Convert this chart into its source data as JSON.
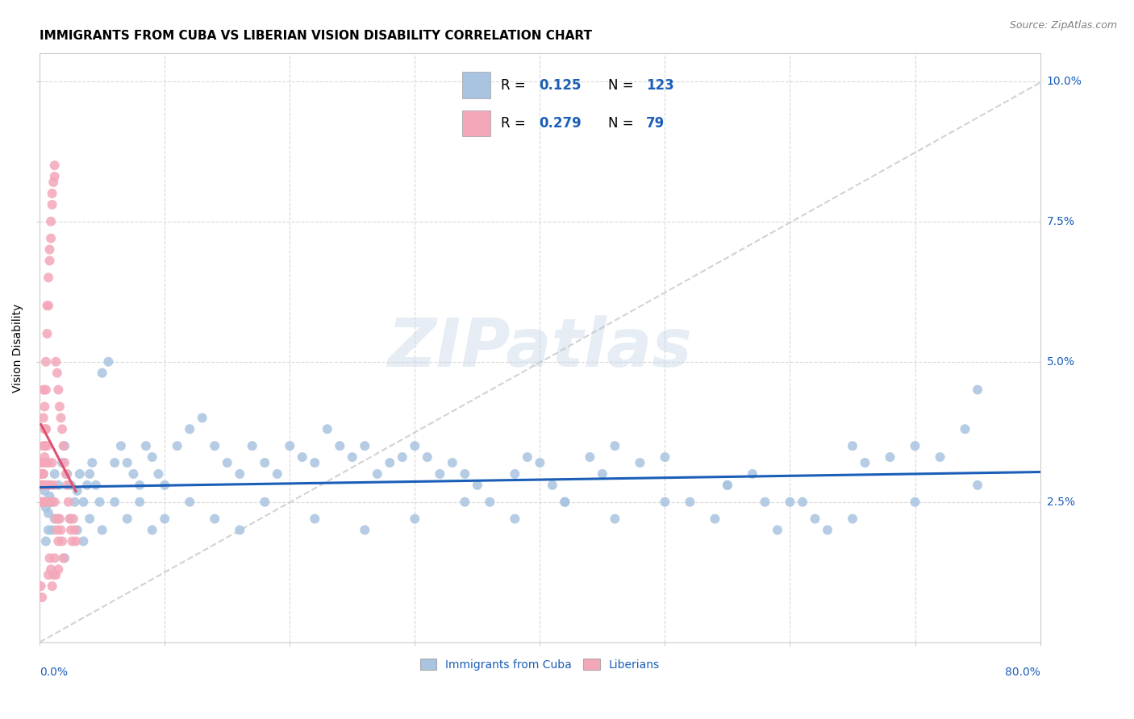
{
  "title": "IMMIGRANTS FROM CUBA VS LIBERIAN VISION DISABILITY CORRELATION CHART",
  "source": "Source: ZipAtlas.com",
  "ylabel": "Vision Disability",
  "xmin": 0.0,
  "xmax": 0.8,
  "ymin": 0.0,
  "ymax": 0.105,
  "watermark": "ZIPatlas",
  "color_cuba": "#a8c4e0",
  "color_liberian": "#f4a7b9",
  "color_cuba_line": "#1a5eb8",
  "color_liberian_line": "#e05070",
  "color_diagonal": "#c0c0c0",
  "title_fontsize": 11,
  "axis_label_fontsize": 10,
  "cuba_x": [
    0.002,
    0.003,
    0.004,
    0.003,
    0.005,
    0.008,
    0.007,
    0.01,
    0.012,
    0.015,
    0.018,
    0.02,
    0.022,
    0.025,
    0.028,
    0.03,
    0.032,
    0.035,
    0.038,
    0.04,
    0.042,
    0.045,
    0.048,
    0.05,
    0.055,
    0.06,
    0.065,
    0.07,
    0.075,
    0.08,
    0.085,
    0.09,
    0.095,
    0.1,
    0.11,
    0.12,
    0.13,
    0.14,
    0.15,
    0.16,
    0.17,
    0.18,
    0.19,
    0.2,
    0.21,
    0.22,
    0.23,
    0.24,
    0.25,
    0.26,
    0.27,
    0.28,
    0.29,
    0.3,
    0.31,
    0.32,
    0.33,
    0.34,
    0.35,
    0.36,
    0.38,
    0.39,
    0.4,
    0.41,
    0.42,
    0.44,
    0.45,
    0.46,
    0.48,
    0.5,
    0.52,
    0.54,
    0.55,
    0.57,
    0.58,
    0.59,
    0.61,
    0.62,
    0.63,
    0.65,
    0.66,
    0.68,
    0.7,
    0.72,
    0.74,
    0.75,
    0.01,
    0.015,
    0.008,
    0.012,
    0.005,
    0.007,
    0.02,
    0.025,
    0.03,
    0.035,
    0.04,
    0.05,
    0.06,
    0.07,
    0.08,
    0.09,
    0.1,
    0.12,
    0.14,
    0.16,
    0.18,
    0.22,
    0.26,
    0.3,
    0.34,
    0.38,
    0.42,
    0.46,
    0.5,
    0.55,
    0.6,
    0.65,
    0.7,
    0.75,
    0.003,
    0.006,
    0.009
  ],
  "cuba_y": [
    0.028,
    0.025,
    0.027,
    0.03,
    0.024,
    0.026,
    0.023,
    0.025,
    0.03,
    0.028,
    0.032,
    0.035,
    0.03,
    0.028,
    0.025,
    0.027,
    0.03,
    0.025,
    0.028,
    0.03,
    0.032,
    0.028,
    0.025,
    0.048,
    0.05,
    0.032,
    0.035,
    0.032,
    0.03,
    0.028,
    0.035,
    0.033,
    0.03,
    0.028,
    0.035,
    0.038,
    0.04,
    0.035,
    0.032,
    0.03,
    0.035,
    0.032,
    0.03,
    0.035,
    0.033,
    0.032,
    0.038,
    0.035,
    0.033,
    0.035,
    0.03,
    0.032,
    0.033,
    0.035,
    0.033,
    0.03,
    0.032,
    0.03,
    0.028,
    0.025,
    0.03,
    0.033,
    0.032,
    0.028,
    0.025,
    0.033,
    0.03,
    0.035,
    0.032,
    0.033,
    0.025,
    0.022,
    0.028,
    0.03,
    0.025,
    0.02,
    0.025,
    0.022,
    0.02,
    0.035,
    0.032,
    0.033,
    0.035,
    0.033,
    0.038,
    0.045,
    0.02,
    0.022,
    0.025,
    0.022,
    0.018,
    0.02,
    0.015,
    0.022,
    0.02,
    0.018,
    0.022,
    0.02,
    0.025,
    0.022,
    0.025,
    0.02,
    0.022,
    0.025,
    0.022,
    0.02,
    0.025,
    0.022,
    0.02,
    0.022,
    0.025,
    0.022,
    0.025,
    0.022,
    0.025,
    0.028,
    0.025,
    0.022,
    0.025,
    0.028,
    0.025,
    0.028,
    0.025
  ],
  "liberian_x": [
    0.001,
    0.001,
    0.001,
    0.002,
    0.002,
    0.002,
    0.003,
    0.003,
    0.003,
    0.004,
    0.004,
    0.005,
    0.005,
    0.006,
    0.006,
    0.007,
    0.007,
    0.008,
    0.008,
    0.009,
    0.009,
    0.01,
    0.01,
    0.011,
    0.012,
    0.012,
    0.013,
    0.014,
    0.015,
    0.016,
    0.017,
    0.018,
    0.019,
    0.02,
    0.021,
    0.022,
    0.023,
    0.024,
    0.025,
    0.026,
    0.027,
    0.028,
    0.029,
    0.003,
    0.004,
    0.005,
    0.006,
    0.007,
    0.008,
    0.009,
    0.01,
    0.011,
    0.012,
    0.013,
    0.014,
    0.015,
    0.016,
    0.017,
    0.018,
    0.019,
    0.002,
    0.002,
    0.003,
    0.003,
    0.004,
    0.004,
    0.005,
    0.005,
    0.006,
    0.006,
    0.007,
    0.008,
    0.009,
    0.01,
    0.011,
    0.012,
    0.013,
    0.015,
    0.001,
    0.002
  ],
  "liberian_y": [
    0.03,
    0.028,
    0.025,
    0.032,
    0.028,
    0.025,
    0.04,
    0.035,
    0.03,
    0.038,
    0.033,
    0.05,
    0.045,
    0.06,
    0.055,
    0.065,
    0.06,
    0.07,
    0.068,
    0.075,
    0.072,
    0.08,
    0.078,
    0.082,
    0.085,
    0.083,
    0.05,
    0.048,
    0.045,
    0.042,
    0.04,
    0.038,
    0.035,
    0.032,
    0.03,
    0.028,
    0.025,
    0.022,
    0.02,
    0.018,
    0.022,
    0.02,
    0.018,
    0.045,
    0.042,
    0.038,
    0.035,
    0.032,
    0.028,
    0.025,
    0.032,
    0.028,
    0.025,
    0.022,
    0.02,
    0.018,
    0.022,
    0.02,
    0.018,
    0.015,
    0.03,
    0.028,
    0.032,
    0.025,
    0.035,
    0.028,
    0.038,
    0.032,
    0.028,
    0.025,
    0.012,
    0.015,
    0.013,
    0.01,
    0.012,
    0.015,
    0.012,
    0.013,
    0.01,
    0.008
  ]
}
